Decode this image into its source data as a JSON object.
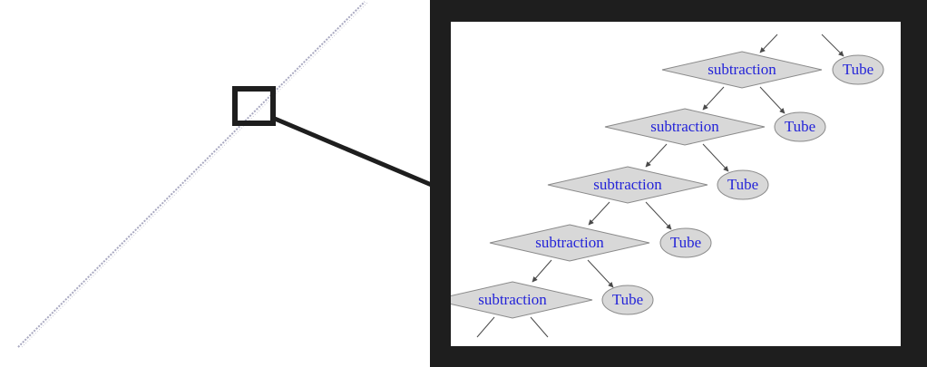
{
  "overview": {
    "description_visible": false
  },
  "zoom_panel": {
    "nodes": [
      {
        "shape": "diamond",
        "label": "subtraction"
      },
      {
        "shape": "ellipse",
        "label": "Tube"
      },
      {
        "shape": "diamond",
        "label": "subtraction"
      },
      {
        "shape": "ellipse",
        "label": "Tube"
      },
      {
        "shape": "diamond",
        "label": "subtraction"
      },
      {
        "shape": "ellipse",
        "label": "Tube"
      },
      {
        "shape": "diamond",
        "label": "subtraction"
      },
      {
        "shape": "ellipse",
        "label": "Tube"
      },
      {
        "shape": "diamond",
        "label": "subtraction"
      },
      {
        "shape": "ellipse",
        "label": "Tube"
      }
    ]
  },
  "colors": {
    "node_fill": "#d8d8d8",
    "node_stroke": "#8a8a8a",
    "label": "#2424d8",
    "frame": "#1e1e1e",
    "edge": "#4a4a4a",
    "overview_line": "#9a9ab0"
  }
}
